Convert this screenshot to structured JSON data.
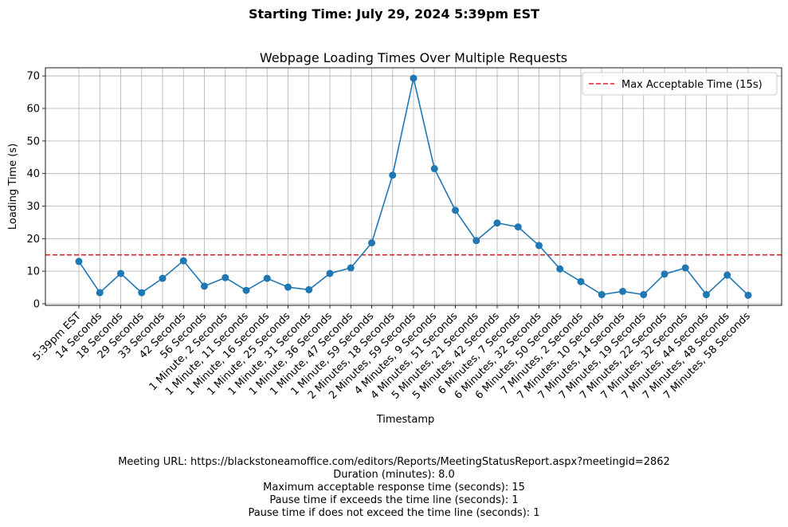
{
  "suptitle": "Starting Time: July 29, 2024 5:39pm EST",
  "footer": {
    "lines": [
      "Meeting URL: https://blackstoneamoffice.com/editors/Reports/MeetingStatusReport.aspx?meetingid=2862",
      "Duration (minutes): 8.0",
      "Maximum acceptable response time (seconds): 15",
      "Pause time if exceeds the time line (seconds): 1",
      "Pause time if does not exceed the time line (seconds): 1"
    ]
  },
  "chart_data": {
    "type": "line",
    "title": "Webpage Loading Times Over Multiple Requests",
    "xlabel": "Timestamp",
    "ylabel": "Loading Time (s)",
    "ylim": [
      -0.5,
      72.5
    ],
    "yticks": [
      0,
      10,
      20,
      30,
      40,
      50,
      60,
      70
    ],
    "grid": true,
    "legend_position": "top-right",
    "categories": [
      "5:39pm EST",
      "14 Seconds",
      "18 Seconds",
      "29 Seconds",
      "33 Seconds",
      "42 Seconds",
      "56 Seconds",
      "1 Minute, 2 Seconds",
      "1 Minute, 11 Seconds",
      "1 Minute, 16 Seconds",
      "1 Minute, 25 Seconds",
      "1 Minute, 31 Seconds",
      "1 Minute, 36 Seconds",
      "1 Minute, 47 Seconds",
      "1 Minute, 59 Seconds",
      "2 Minutes, 18 Seconds",
      "2 Minutes, 59 Seconds",
      "4 Minutes, 9 Seconds",
      "4 Minutes, 51 Seconds",
      "5 Minutes, 21 Seconds",
      "5 Minutes, 42 Seconds",
      "6 Minutes, 7 Seconds",
      "6 Minutes, 32 Seconds",
      "6 Minutes, 50 Seconds",
      "7 Minutes, 2 Seconds",
      "7 Minutes, 10 Seconds",
      "7 Minutes, 14 Seconds",
      "7 Minutes, 19 Seconds",
      "7 Minutes, 22 Seconds",
      "7 Minutes, 32 Seconds",
      "7 Minutes, 44 Seconds",
      "7 Minutes, 48 Seconds",
      "7 Minutes, 58 Seconds"
    ],
    "series": [
      {
        "values": [
          13.0,
          3.4,
          9.3,
          3.4,
          7.8,
          13.2,
          5.4,
          8.0,
          4.1,
          7.8,
          5.1,
          4.3,
          9.3,
          11.0,
          18.7,
          39.5,
          69.3,
          41.5,
          28.7,
          19.4,
          24.8,
          23.6,
          17.9,
          10.7,
          6.8,
          2.8,
          3.8,
          2.8,
          9.1,
          11.0,
          2.8,
          8.8,
          2.6
        ],
        "color": "#1f77b4"
      }
    ],
    "reference_line": {
      "value": 15,
      "label": "Max Acceptable Time (15s)",
      "color": "#d62728",
      "style": "dashed"
    }
  }
}
